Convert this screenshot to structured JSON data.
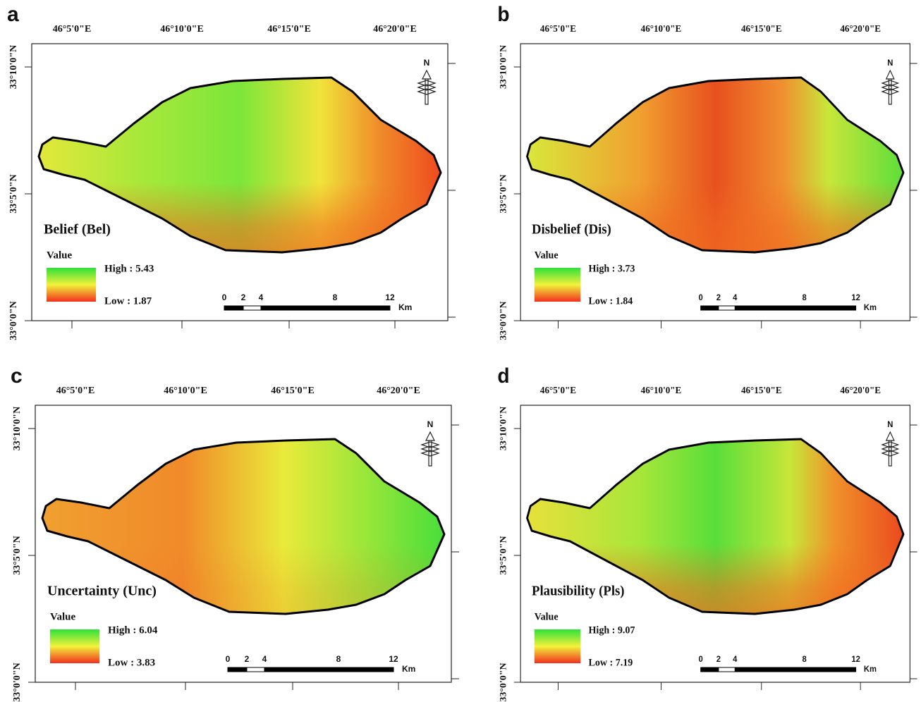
{
  "panels": [
    {
      "letter": "a",
      "lon_labels": [
        "46°5'0\"E",
        "46°10'0\"E",
        "46°15'0\"E",
        "46°20'0\"E"
      ],
      "lat_labels": [
        "33°10'0\"N",
        "33°5'0\"N",
        "33°0'0\"N"
      ],
      "title": "Belief (Bel)",
      "legend": {
        "heading": "Value",
        "high": "High : 5.43",
        "low": "Low : 1.87"
      },
      "scale": {
        "ticks": [
          0,
          2,
          4,
          8,
          12
        ],
        "unit": "Km"
      },
      "north": "N"
    },
    {
      "letter": "b",
      "lon_labels": [
        "46°5'0\"E",
        "46°10'0\"E",
        "46°15'0\"E",
        "46°20'0\"E"
      ],
      "lat_labels": [
        "33°10'0\"N",
        "33°5'0\"N",
        "33°0'0\"N"
      ],
      "title": "Disbelief (Dis)",
      "legend": {
        "heading": "Value",
        "high": "High : 3.73",
        "low": "Low : 1.84"
      },
      "scale": {
        "ticks": [
          0,
          2,
          4,
          8,
          12
        ],
        "unit": "Km"
      },
      "north": "N"
    },
    {
      "letter": "c",
      "lon_labels": [
        "46°5'0\"E",
        "46°10'0\"E",
        "46°15'0\"E",
        "46°20'0\"E"
      ],
      "lat_labels": [
        "33°10'0\"N",
        "33°5'0\"N",
        "33°0'0\"N"
      ],
      "title": "Uncertainty (Unc)",
      "legend": {
        "heading": "Value",
        "high": "High : 6.04",
        "low": "Low : 3.83"
      },
      "scale": {
        "ticks": [
          0,
          2,
          4,
          8,
          12
        ],
        "unit": "Km"
      },
      "north": "N"
    },
    {
      "letter": "d",
      "lon_labels": [
        "46°5'0\"E",
        "46°10'0\"E",
        "46°15'0\"E",
        "46°20'0\"E"
      ],
      "lat_labels": [
        "33°10'0\"N",
        "33°5'0\"N",
        "33°0'0\"N"
      ],
      "title": "Plausibility (Pls)",
      "legend": {
        "heading": "Value",
        "high": "High : 9.07",
        "low": "Low : 7.19"
      },
      "scale": {
        "ticks": [
          0,
          2,
          4,
          8,
          12
        ],
        "unit": "Km"
      },
      "north": "N"
    }
  ]
}
